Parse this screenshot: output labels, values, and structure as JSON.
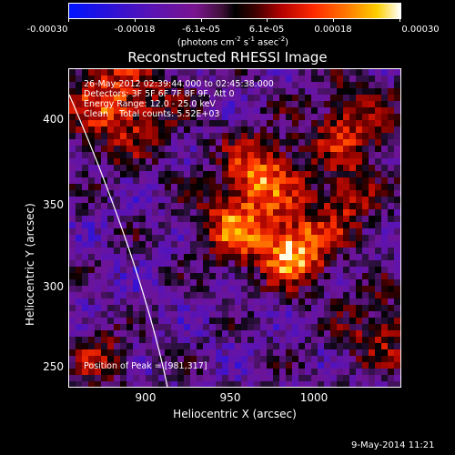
{
  "colorbar": {
    "ticks": [
      "-0.00030",
      "-0.00018",
      "-6.1e-05",
      "6.1e-05",
      "0.00018",
      "0.00030"
    ],
    "units_prefix": "(photons cm",
    "units_exp1": "-2",
    "units_mid1": " s",
    "units_exp2": "-1",
    "units_mid2": " asec",
    "units_exp3": "-2",
    "units_suffix": ")"
  },
  "title": "Reconstructed RHESSI Image",
  "annotations": {
    "time": "26-May-2012 02:39:44.000 to 02:45:38.000",
    "detectors": "Detectors: 3F 5F 6F 7F 8F 9F, Att 0",
    "energy": "Energy Range: 12.0 - 25.0 keV",
    "clean": "Clean    Total counts: 5.52E+03",
    "peak": "Position of Peak = [981,317]"
  },
  "axes": {
    "xlabel": "Heliocentric X (arcsec)",
    "ylabel": "Heliocentric Y (arcsec)",
    "xticks": [
      "900",
      "950",
      "1000"
    ],
    "yticks": [
      "400",
      "350",
      "300",
      "250"
    ]
  },
  "datestamp": "9-May-2014 11:21",
  "image_data": {
    "description_free": true,
    "peak_x": 981,
    "peak_y": 317,
    "x_range": [
      853,
      1042
    ],
    "y_range": [
      237,
      425
    ]
  }
}
